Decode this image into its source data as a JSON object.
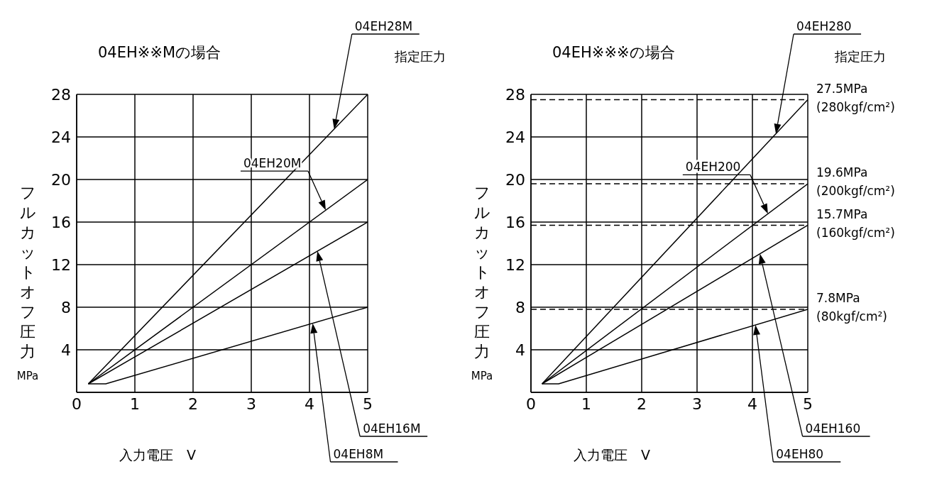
{
  "chart_data": [
    {
      "type": "line",
      "title": "04EH※※Mの場合",
      "xlabel": "入力電圧　V",
      "ylabel": "フルカットオフ圧力 MPa",
      "annotations": [
        "指定圧力"
      ],
      "xlim": [
        0,
        5
      ],
      "xticks": [
        0,
        1,
        2,
        3,
        4,
        5
      ],
      "ylim": [
        0,
        28
      ],
      "yticks": [
        {
          "value": 0,
          "label": null
        },
        4,
        8,
        12,
        16,
        20,
        24,
        28
      ],
      "grid": true,
      "legend": false,
      "marker": "none",
      "line_style": "solid",
      "series": [
        {
          "name": "04EH28M",
          "color": "#000000",
          "x": [
            0.2,
            5
          ],
          "values": [
            0.8,
            28
          ]
        },
        {
          "name": "04EH20M",
          "color": "#000000",
          "x": [
            0.2,
            5
          ],
          "values": [
            0.8,
            20
          ]
        },
        {
          "name": "04EH16M",
          "color": "#000000",
          "x": [
            0.2,
            5
          ],
          "values": [
            0.8,
            16
          ]
        },
        {
          "name": "04EH8M",
          "color": "#000000",
          "x": [
            0.2,
            0.5,
            5
          ],
          "values": [
            0.8,
            0.8,
            8
          ]
        }
      ]
    },
    {
      "type": "line",
      "title": "04EH※※※の場合",
      "xlabel": "入力電圧　V",
      "ylabel": "フルカットオフ圧力 MPa",
      "annotations": [
        "指定圧力"
      ],
      "xlim": [
        0,
        5
      ],
      "xticks": [
        0,
        1,
        2,
        3,
        4,
        5
      ],
      "ylim": [
        0,
        28
      ],
      "yticks": [
        {
          "value": 0,
          "label": null
        },
        4,
        8,
        12,
        16,
        20,
        24,
        28
      ],
      "grid": true,
      "legend": false,
      "marker": "none",
      "line_style": "solid",
      "series": [
        {
          "name": "04EH280",
          "color": "#000000",
          "x": [
            0.2,
            5
          ],
          "values": [
            0.8,
            27.5
          ]
        },
        {
          "name": "04EH200",
          "color": "#000000",
          "x": [
            0.2,
            5
          ],
          "values": [
            0.8,
            19.6
          ]
        },
        {
          "name": "04EH160",
          "color": "#000000",
          "x": [
            0.2,
            5
          ],
          "values": [
            0.8,
            15.7
          ]
        },
        {
          "name": "04EH80",
          "color": "#000000",
          "x": [
            0.2,
            0.5,
            5
          ],
          "values": [
            0.8,
            0.8,
            7.8
          ]
        }
      ],
      "ref_lines": [
        {
          "axis": "y",
          "value": 27.5,
          "label": "27.5MPa\n(280kgf/cm²)",
          "line_style": "dashed"
        },
        {
          "axis": "y",
          "value": 19.6,
          "label": "19.6MPa\n(200kgf/cm²)",
          "line_style": "dashed"
        },
        {
          "axis": "y",
          "value": 15.7,
          "label": "15.7MPa\n(160kgf/cm²)",
          "line_style": "dashed"
        },
        {
          "axis": "y",
          "value": 7.8,
          "label": "7.8MPa\n(80kgf/cm²)",
          "line_style": "dashed"
        }
      ]
    }
  ]
}
